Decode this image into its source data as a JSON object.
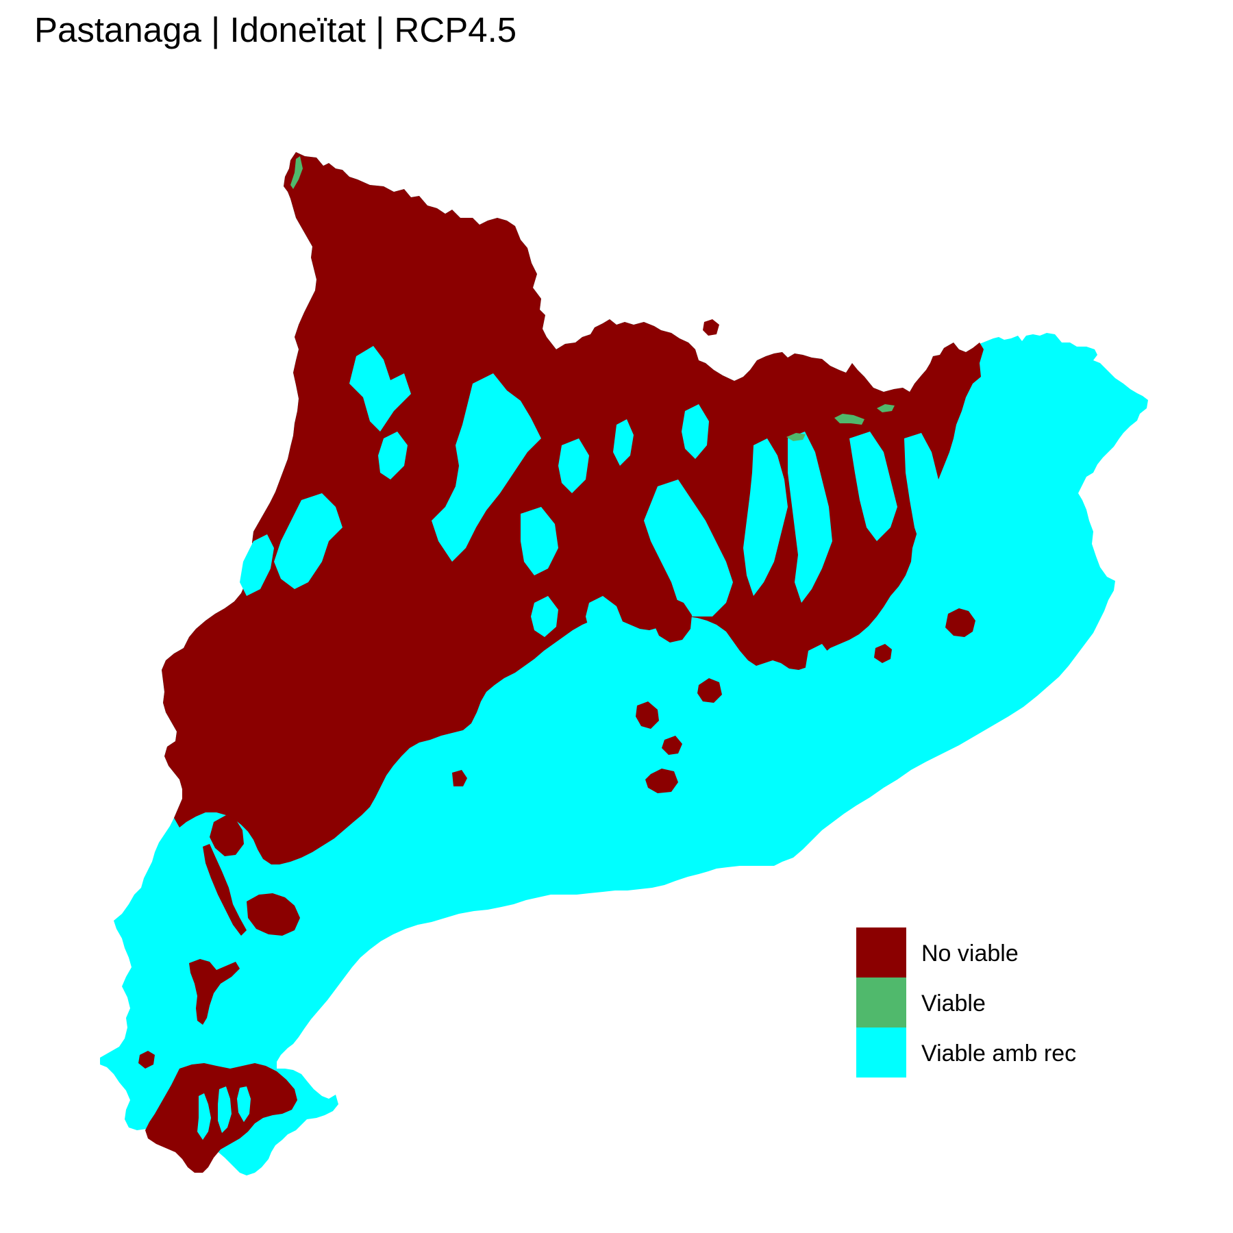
{
  "title": "Pastanaga | Idoneïtat | RCP4.5",
  "colors": {
    "no_viable": "#8b0000",
    "viable": "#50b96c",
    "viable_amb_rec": "#00ffff",
    "background": "#ffffff"
  },
  "legend": {
    "items": [
      {
        "label": "No viable",
        "color": "#8b0000"
      },
      {
        "label": "Viable",
        "color": "#50b96c"
      },
      {
        "label": "Viable amb rec",
        "color": "#00ffff"
      }
    ]
  }
}
